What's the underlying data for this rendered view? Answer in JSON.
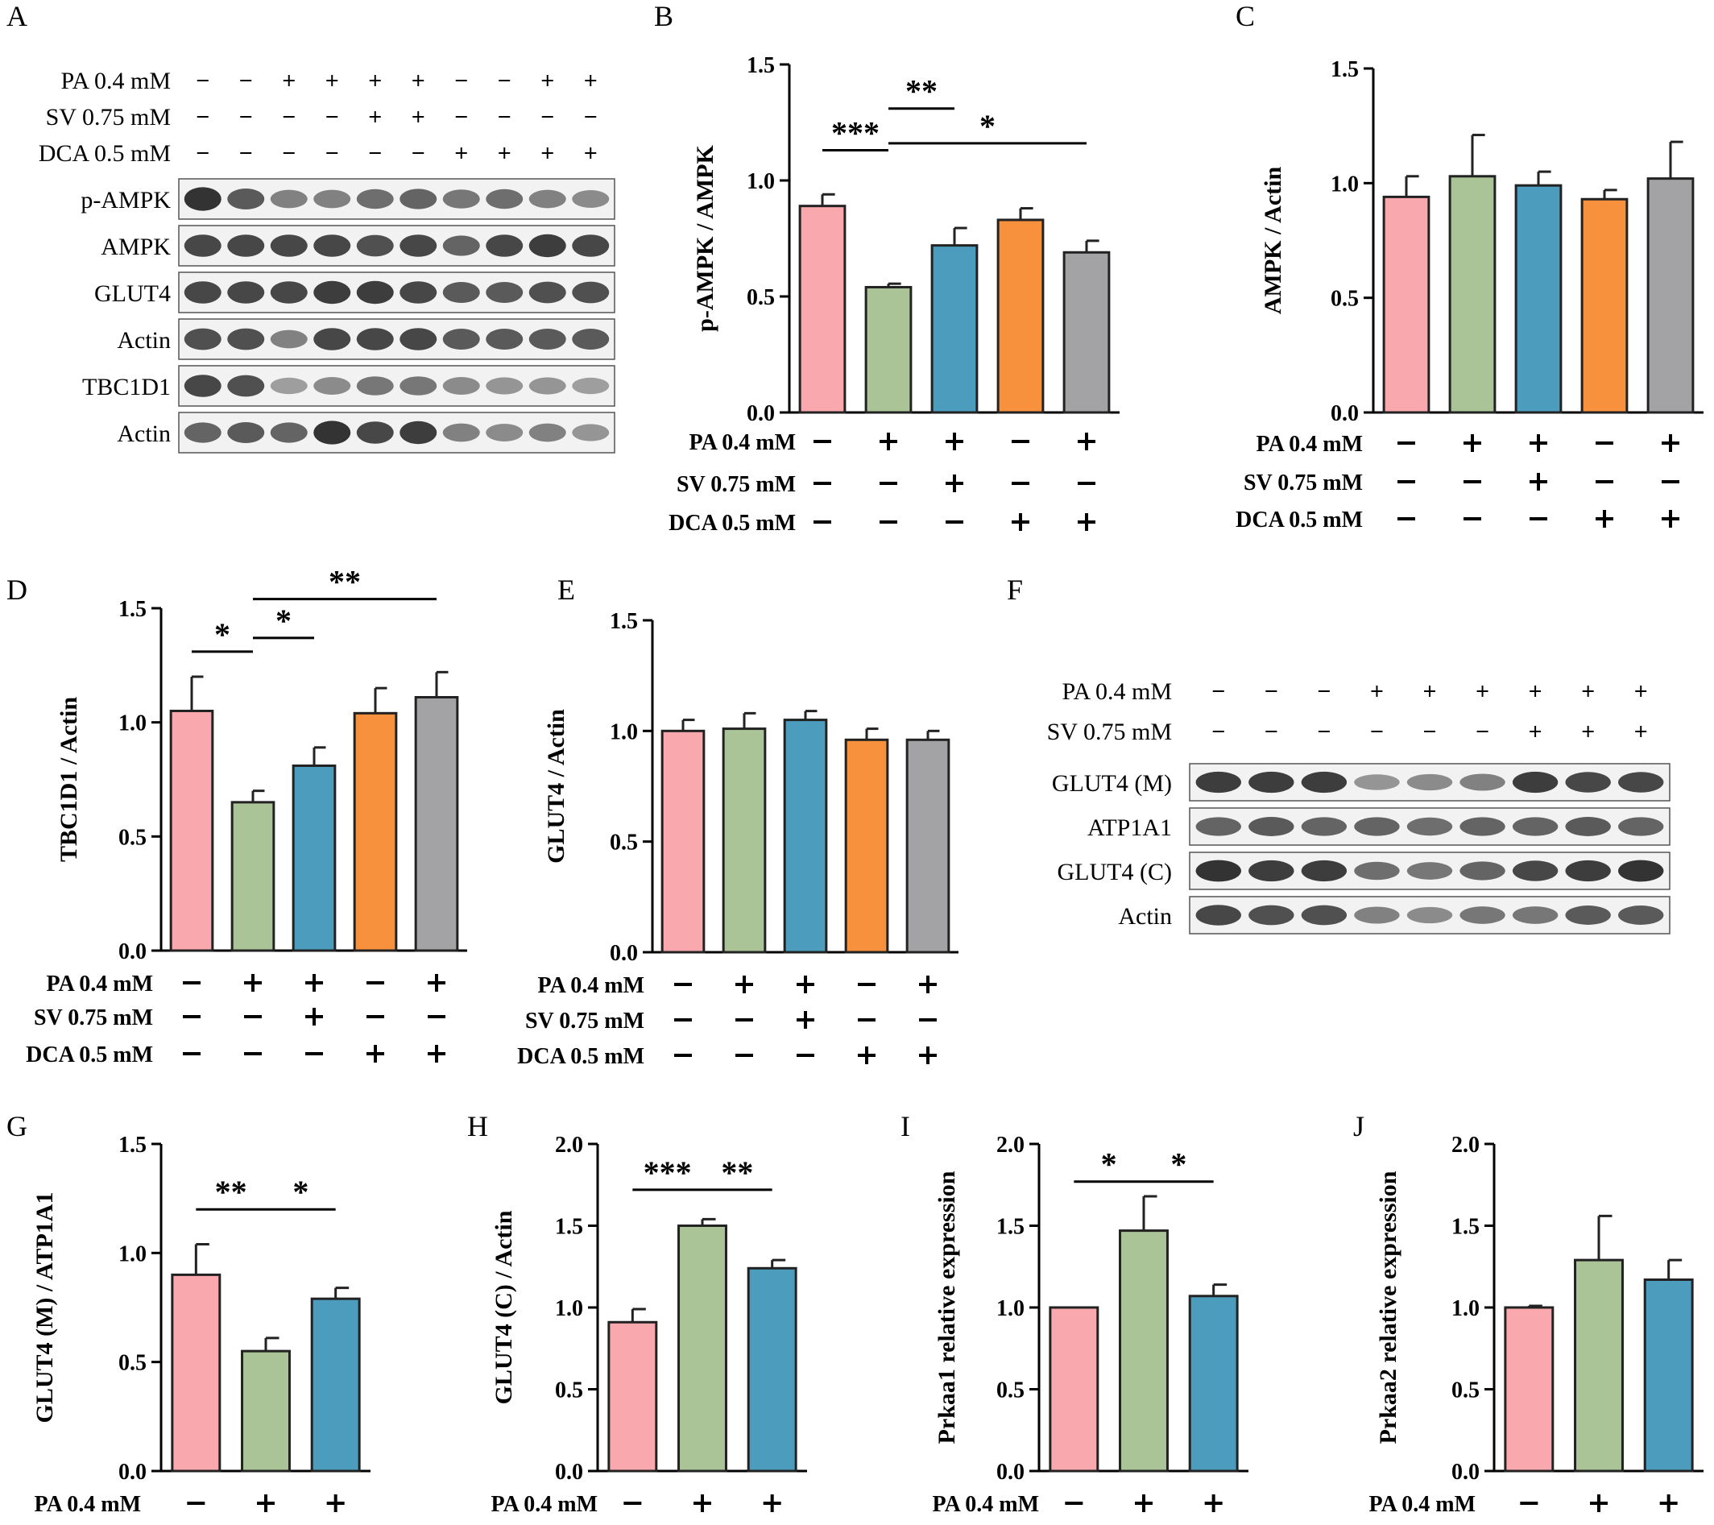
{
  "conditions": [
    "PA 0.4 mM",
    "SV 0.75 mM",
    "DCA 0.5 mM"
  ],
  "colors": {
    "pink": "#F9A9AE",
    "green": "#ABC497",
    "blue": "#4C9DBD",
    "orange": "#F7913D",
    "gray": "#A3A3A6"
  },
  "blots": [
    {
      "panel": "A",
      "treatments": [
        {
          "label": "PA 0.4 mM",
          "signs": [
            "–",
            "–",
            "+",
            "+",
            "+",
            "+",
            "–",
            "–",
            "+",
            "+"
          ]
        },
        {
          "label": "SV 0.75 mM",
          "signs": [
            "–",
            "–",
            "–",
            "–",
            "+",
            "+",
            "–",
            "–",
            "–",
            "–"
          ]
        },
        {
          "label": "DCA 0.5 mM",
          "signs": [
            "–",
            "–",
            "–",
            "–",
            "–",
            "–",
            "+",
            "+",
            "+",
            "+"
          ]
        }
      ],
      "bands": [
        {
          "label": "p-AMPK",
          "intensity": [
            0.95,
            0.75,
            0.55,
            0.55,
            0.65,
            0.7,
            0.6,
            0.65,
            0.55,
            0.5
          ]
        },
        {
          "label": "AMPK",
          "intensity": [
            0.85,
            0.85,
            0.85,
            0.85,
            0.8,
            0.85,
            0.7,
            0.85,
            0.9,
            0.85
          ]
        },
        {
          "label": "GLUT4",
          "intensity": [
            0.85,
            0.85,
            0.85,
            0.9,
            0.9,
            0.85,
            0.75,
            0.75,
            0.8,
            0.8
          ]
        },
        {
          "label": "Actin",
          "intensity": [
            0.8,
            0.8,
            0.55,
            0.85,
            0.85,
            0.85,
            0.75,
            0.75,
            0.75,
            0.75
          ]
        },
        {
          "label": "TBC1D1",
          "intensity": [
            0.85,
            0.8,
            0.4,
            0.5,
            0.6,
            0.6,
            0.5,
            0.45,
            0.45,
            0.4
          ]
        },
        {
          "label": "Actin",
          "intensity": [
            0.7,
            0.75,
            0.7,
            0.95,
            0.85,
            0.9,
            0.55,
            0.5,
            0.55,
            0.45
          ]
        }
      ]
    },
    {
      "panel": "F",
      "treatments": [
        {
          "label": "PA 0.4 mM",
          "signs": [
            "–",
            "–",
            "–",
            "+",
            "+",
            "+",
            "+",
            "+",
            "+"
          ]
        },
        {
          "label": "SV 0.75 mM",
          "signs": [
            "–",
            "–",
            "–",
            "–",
            "–",
            "–",
            "+",
            "+",
            "+"
          ]
        }
      ],
      "bands": [
        {
          "label": "GLUT4 (M)",
          "intensity": [
            0.9,
            0.9,
            0.9,
            0.45,
            0.5,
            0.55,
            0.9,
            0.85,
            0.85
          ]
        },
        {
          "label": "ATP1A1",
          "intensity": [
            0.7,
            0.75,
            0.7,
            0.7,
            0.65,
            0.7,
            0.7,
            0.75,
            0.7
          ]
        },
        {
          "label": "GLUT4 (C)",
          "intensity": [
            0.95,
            0.9,
            0.9,
            0.65,
            0.6,
            0.7,
            0.85,
            0.9,
            0.95
          ]
        },
        {
          "label": "Actin",
          "intensity": [
            0.85,
            0.8,
            0.8,
            0.55,
            0.5,
            0.6,
            0.6,
            0.75,
            0.75
          ]
        }
      ]
    }
  ],
  "chart_data": [
    {
      "panel": "B",
      "type": "bar",
      "ylabel": "p-AMPK / AMPK",
      "ylim": [
        0,
        1.5
      ],
      "yticks": [
        "0.0",
        "0.5",
        "1.0",
        "1.5"
      ],
      "values": [
        0.89,
        0.54,
        0.72,
        0.83,
        0.69
      ],
      "errors": [
        0.05,
        0.015,
        0.075,
        0.05,
        0.05
      ],
      "colors": [
        "pink",
        "green",
        "blue",
        "orange",
        "gray"
      ],
      "treatments": [
        [
          "–",
          "+",
          "+",
          "–",
          "+"
        ],
        [
          "–",
          "–",
          "+",
          "–",
          "–"
        ],
        [
          "–",
          "–",
          "–",
          "+",
          "+"
        ]
      ],
      "significance": [
        {
          "from": 0,
          "to": 1,
          "label": "***",
          "y": 1.13
        },
        {
          "from": 1,
          "to": 2,
          "label": "**",
          "y": 1.31
        },
        {
          "from": 1,
          "to": 4,
          "label": "*",
          "y": 1.16
        }
      ]
    },
    {
      "panel": "C",
      "type": "bar",
      "ylabel": "AMPK / Actin",
      "ylim": [
        0,
        1.5
      ],
      "yticks": [
        "0.0",
        "0.5",
        "1.0",
        "1.5"
      ],
      "values": [
        0.94,
        1.03,
        0.99,
        0.93,
        1.02
      ],
      "errors": [
        0.09,
        0.18,
        0.06,
        0.04,
        0.16
      ],
      "colors": [
        "pink",
        "green",
        "blue",
        "orange",
        "gray"
      ],
      "treatments": [
        [
          "–",
          "+",
          "+",
          "–",
          "+"
        ],
        [
          "–",
          "–",
          "+",
          "–",
          "–"
        ],
        [
          "–",
          "–",
          "–",
          "+",
          "+"
        ]
      ],
      "significance": []
    },
    {
      "panel": "D",
      "type": "bar",
      "ylabel": "TBC1D1 / Actin",
      "ylim": [
        0,
        1.5
      ],
      "yticks": [
        "0.0",
        "0.5",
        "1.0",
        "1.5"
      ],
      "values": [
        1.05,
        0.65,
        0.81,
        1.04,
        1.11
      ],
      "errors": [
        0.15,
        0.05,
        0.08,
        0.11,
        0.11
      ],
      "colors": [
        "pink",
        "green",
        "blue",
        "orange",
        "gray"
      ],
      "treatments": [
        [
          "–",
          "+",
          "+",
          "–",
          "+"
        ],
        [
          "–",
          "–",
          "+",
          "–",
          "–"
        ],
        [
          "–",
          "–",
          "–",
          "+",
          "+"
        ]
      ],
      "significance": [
        {
          "from": 0,
          "to": 1,
          "label": "*",
          "y": 1.31
        },
        {
          "from": 1,
          "to": 2,
          "label": "*",
          "y": 1.37
        },
        {
          "from": 1,
          "to": 4,
          "label": "**",
          "y": 1.54
        }
      ]
    },
    {
      "panel": "E",
      "type": "bar",
      "ylabel": "GLUT4 / Actin",
      "ylim": [
        0,
        1.5
      ],
      "yticks": [
        "0.0",
        "0.5",
        "1.0",
        "1.5"
      ],
      "values": [
        1.0,
        1.01,
        1.05,
        0.96,
        0.96
      ],
      "errors": [
        0.05,
        0.07,
        0.04,
        0.05,
        0.04
      ],
      "colors": [
        "pink",
        "green",
        "blue",
        "orange",
        "gray"
      ],
      "treatments": [
        [
          "–",
          "+",
          "+",
          "–",
          "+"
        ],
        [
          "–",
          "–",
          "+",
          "–",
          "–"
        ],
        [
          "–",
          "–",
          "–",
          "+",
          "+"
        ]
      ],
      "significance": []
    },
    {
      "panel": "G",
      "type": "bar",
      "ylabel": "GLUT4 (M) / ATP1A1",
      "ylim": [
        0,
        1.5
      ],
      "yticks": [
        "0.0",
        "0.5",
        "1.0",
        "1.5"
      ],
      "values": [
        0.9,
        0.55,
        0.79
      ],
      "errors": [
        0.14,
        0.06,
        0.05
      ],
      "colors": [
        "pink",
        "green",
        "blue"
      ],
      "treatments": [
        [
          "–",
          "+",
          "+"
        ],
        [
          "–",
          "–",
          "+"
        ]
      ],
      "significance": [
        {
          "from": 0,
          "to": 1,
          "label": "**",
          "y": 1.2
        },
        {
          "from": 1,
          "to": 2,
          "label": "*",
          "y": 1.2
        }
      ]
    },
    {
      "panel": "H",
      "type": "bar",
      "ylabel": "GLUT4 (C) / Actin",
      "ylim": [
        0,
        2.0
      ],
      "yticks": [
        "0.0",
        "0.5",
        "1.0",
        "1.5",
        "2.0"
      ],
      "values": [
        0.91,
        1.5,
        1.24
      ],
      "errors": [
        0.08,
        0.04,
        0.05
      ],
      "colors": [
        "pink",
        "green",
        "blue"
      ],
      "treatments": [
        [
          "–",
          "+",
          "+"
        ],
        [
          "–",
          "–",
          "+"
        ]
      ],
      "significance": [
        {
          "from": 0,
          "to": 1,
          "label": "***",
          "y": 1.72
        },
        {
          "from": 1,
          "to": 2,
          "label": "**",
          "y": 1.72
        }
      ]
    },
    {
      "panel": "I",
      "type": "bar",
      "ylabel": "Prkaa1 relative expression",
      "ylim": [
        0,
        2.0
      ],
      "yticks": [
        "0.0",
        "0.5",
        "1.0",
        "1.5",
        "2.0"
      ],
      "values": [
        1.0,
        1.47,
        1.07
      ],
      "errors": [
        0.0,
        0.21,
        0.07
      ],
      "colors": [
        "pink",
        "green",
        "blue"
      ],
      "treatments": [
        [
          "–",
          "+",
          "+"
        ],
        [
          "–",
          "–",
          "+"
        ]
      ],
      "significance": [
        {
          "from": 0,
          "to": 1,
          "label": "*",
          "y": 1.77
        },
        {
          "from": 1,
          "to": 2,
          "label": "*",
          "y": 1.77
        }
      ]
    },
    {
      "panel": "J",
      "type": "bar",
      "ylabel": "Prkaa2 relative expression",
      "ylim": [
        0,
        2.0
      ],
      "yticks": [
        "0.0",
        "0.5",
        "1.0",
        "1.5",
        "2.0"
      ],
      "values": [
        1.0,
        1.29,
        1.17
      ],
      "errors": [
        0.01,
        0.27,
        0.12
      ],
      "colors": [
        "pink",
        "green",
        "blue"
      ],
      "treatments": [
        [
          "–",
          "+",
          "+"
        ],
        [
          "–",
          "–",
          "+"
        ]
      ],
      "significance": []
    }
  ]
}
